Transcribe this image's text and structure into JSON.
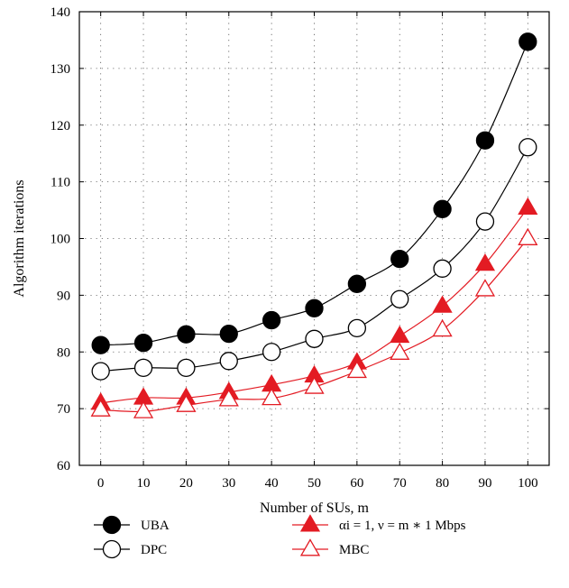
{
  "chart_data": {
    "type": "line",
    "xlabel": "Number of SUs, m",
    "ylabel": "Algorithm iterations",
    "xlim": [
      -5,
      105
    ],
    "ylim": [
      60,
      140
    ],
    "x_ticks": [
      0,
      10,
      20,
      30,
      40,
      50,
      60,
      70,
      80,
      90,
      100
    ],
    "y_ticks": [
      60,
      70,
      80,
      90,
      100,
      110,
      120,
      130,
      140
    ],
    "grid": true,
    "legend_position": "bottom",
    "x": [
      0,
      10,
      20,
      30,
      40,
      50,
      60,
      70,
      80,
      90,
      100
    ],
    "series": [
      {
        "name": "UBA",
        "color": "#000000",
        "marker": "filled-circle",
        "values": [
          81.2,
          81.6,
          83.1,
          83.2,
          85.6,
          87.7,
          92.0,
          96.4,
          105.2,
          117.3,
          134.7
        ]
      },
      {
        "name": "DPC",
        "color": "#000000",
        "marker": "open-circle",
        "values": [
          76.6,
          77.2,
          77.2,
          78.4,
          80.0,
          82.3,
          84.2,
          89.3,
          94.7,
          103.0,
          116.1
        ]
      },
      {
        "name": "αi = 1, ν = m ∗ 1 Mbps",
        "color": "#e31b23",
        "marker": "filled-triangle",
        "values": [
          71.0,
          71.9,
          71.9,
          72.9,
          74.2,
          75.8,
          78.1,
          82.8,
          88.1,
          95.5,
          105.4
        ]
      },
      {
        "name": "MBC",
        "color": "#e31b23",
        "marker": "open-triangle",
        "values": [
          69.8,
          69.5,
          70.6,
          71.6,
          71.8,
          73.8,
          76.6,
          79.8,
          83.9,
          91.0,
          100.0
        ]
      }
    ]
  }
}
